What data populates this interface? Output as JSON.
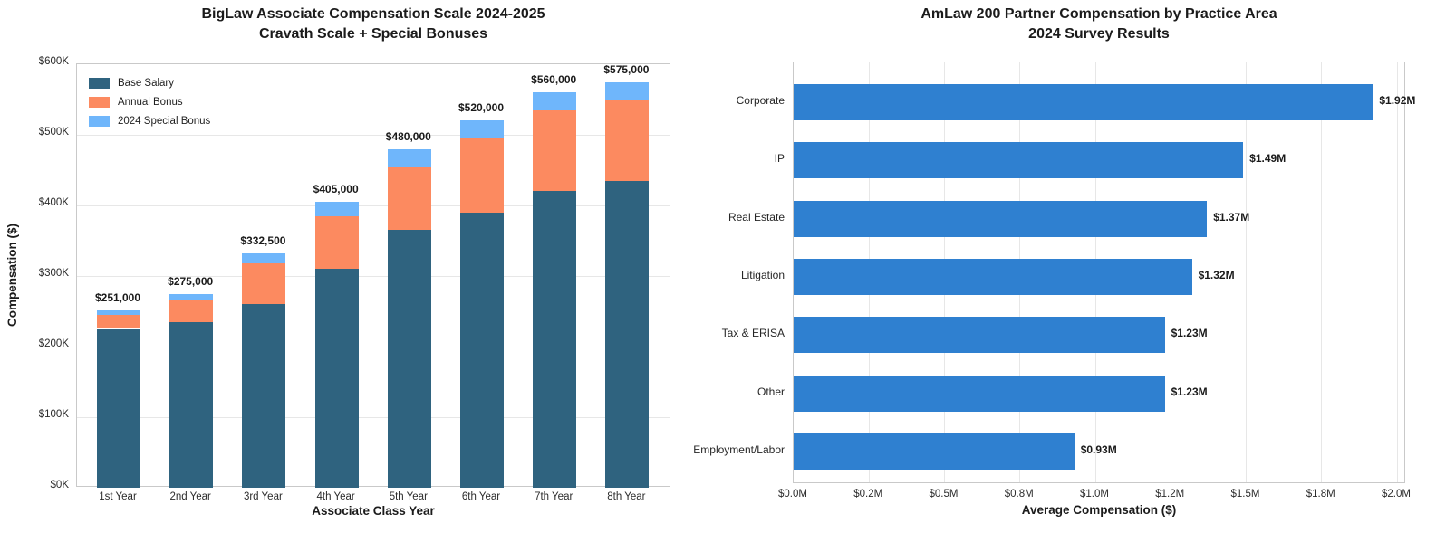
{
  "page": {
    "background": "#ffffff"
  },
  "chart_data": [
    {
      "type": "bar",
      "stacked": true,
      "orientation": "vertical",
      "title": "BigLaw Associate Compensation Scale 2024-2025",
      "subtitle": "Cravath Scale + Special Bonuses",
      "xlabel": "Associate Class Year",
      "ylabel": "Compensation ($)",
      "categories": [
        "1st Year",
        "2nd Year",
        "3rd Year",
        "4th Year",
        "5th Year",
        "6th Year",
        "7th Year",
        "8th Year"
      ],
      "series": [
        {
          "name": "Base Salary",
          "color": "#2f637f",
          "values": [
            225000,
            235000,
            260000,
            310000,
            365000,
            390000,
            420000,
            435000
          ]
        },
        {
          "name": "Annual Bonus",
          "color": "#fc8a60",
          "values": [
            20000,
            30000,
            57500,
            75000,
            90000,
            105000,
            115000,
            115000
          ]
        },
        {
          "name": "2024 Special Bonus",
          "color": "#6fb6fb",
          "values": [
            6000,
            10000,
            15000,
            20000,
            25000,
            25000,
            25000,
            25000
          ]
        }
      ],
      "totals": [
        251000,
        275000,
        332500,
        405000,
        480000,
        520000,
        560000,
        575000
      ],
      "total_labels": [
        "$251,000",
        "$275,000",
        "$332,500",
        "$405,000",
        "$480,000",
        "$520,000",
        "$560,000",
        "$575,000"
      ],
      "ylim": [
        0,
        600000
      ],
      "y_ticks": [
        {
          "v": 0,
          "label": "$0K"
        },
        {
          "v": 100000,
          "label": "$100K"
        },
        {
          "v": 200000,
          "label": "$200K"
        },
        {
          "v": 300000,
          "label": "$300K"
        },
        {
          "v": 400000,
          "label": "$400K"
        },
        {
          "v": 500000,
          "label": "$500K"
        },
        {
          "v": 600000,
          "label": "$600K"
        }
      ],
      "grid": true,
      "legend_position": "upper-left"
    },
    {
      "type": "bar",
      "orientation": "horizontal",
      "title": "AmLaw 200 Partner Compensation by Practice Area",
      "subtitle": "2024 Survey Results",
      "xlabel": "Average Compensation ($)",
      "ylabel": "",
      "categories": [
        "Corporate",
        "IP",
        "Real Estate",
        "Litigation",
        "Tax & ERISA",
        "Other",
        "Employment/Labor"
      ],
      "values": [
        1.92,
        1.49,
        1.37,
        1.32,
        1.23,
        1.23,
        0.93
      ],
      "value_labels": [
        "$1.92M",
        "$1.49M",
        "$1.37M",
        "$1.32M",
        "$1.23M",
        "$1.23M",
        "$0.93M"
      ],
      "bar_color": "#2f80d0",
      "xlim": [
        0,
        2.03
      ],
      "x_ticks": [
        {
          "v": 0.0,
          "label": "$0.0M"
        },
        {
          "v": 0.25,
          "label": "$0.2M"
        },
        {
          "v": 0.5,
          "label": "$0.5M"
        },
        {
          "v": 0.75,
          "label": "$0.8M"
        },
        {
          "v": 1.0,
          "label": "$1.0M"
        },
        {
          "v": 1.25,
          "label": "$1.2M"
        },
        {
          "v": 1.5,
          "label": "$1.5M"
        },
        {
          "v": 1.75,
          "label": "$1.8M"
        },
        {
          "v": 2.0,
          "label": "$2.0M"
        }
      ],
      "grid": true
    }
  ],
  "style": {
    "grid_color": "#e7e7e7",
    "spine_color": "#c9c9c9",
    "tick_text_color": "#2b2b2b",
    "label_text_color": "#1a1a1a"
  }
}
